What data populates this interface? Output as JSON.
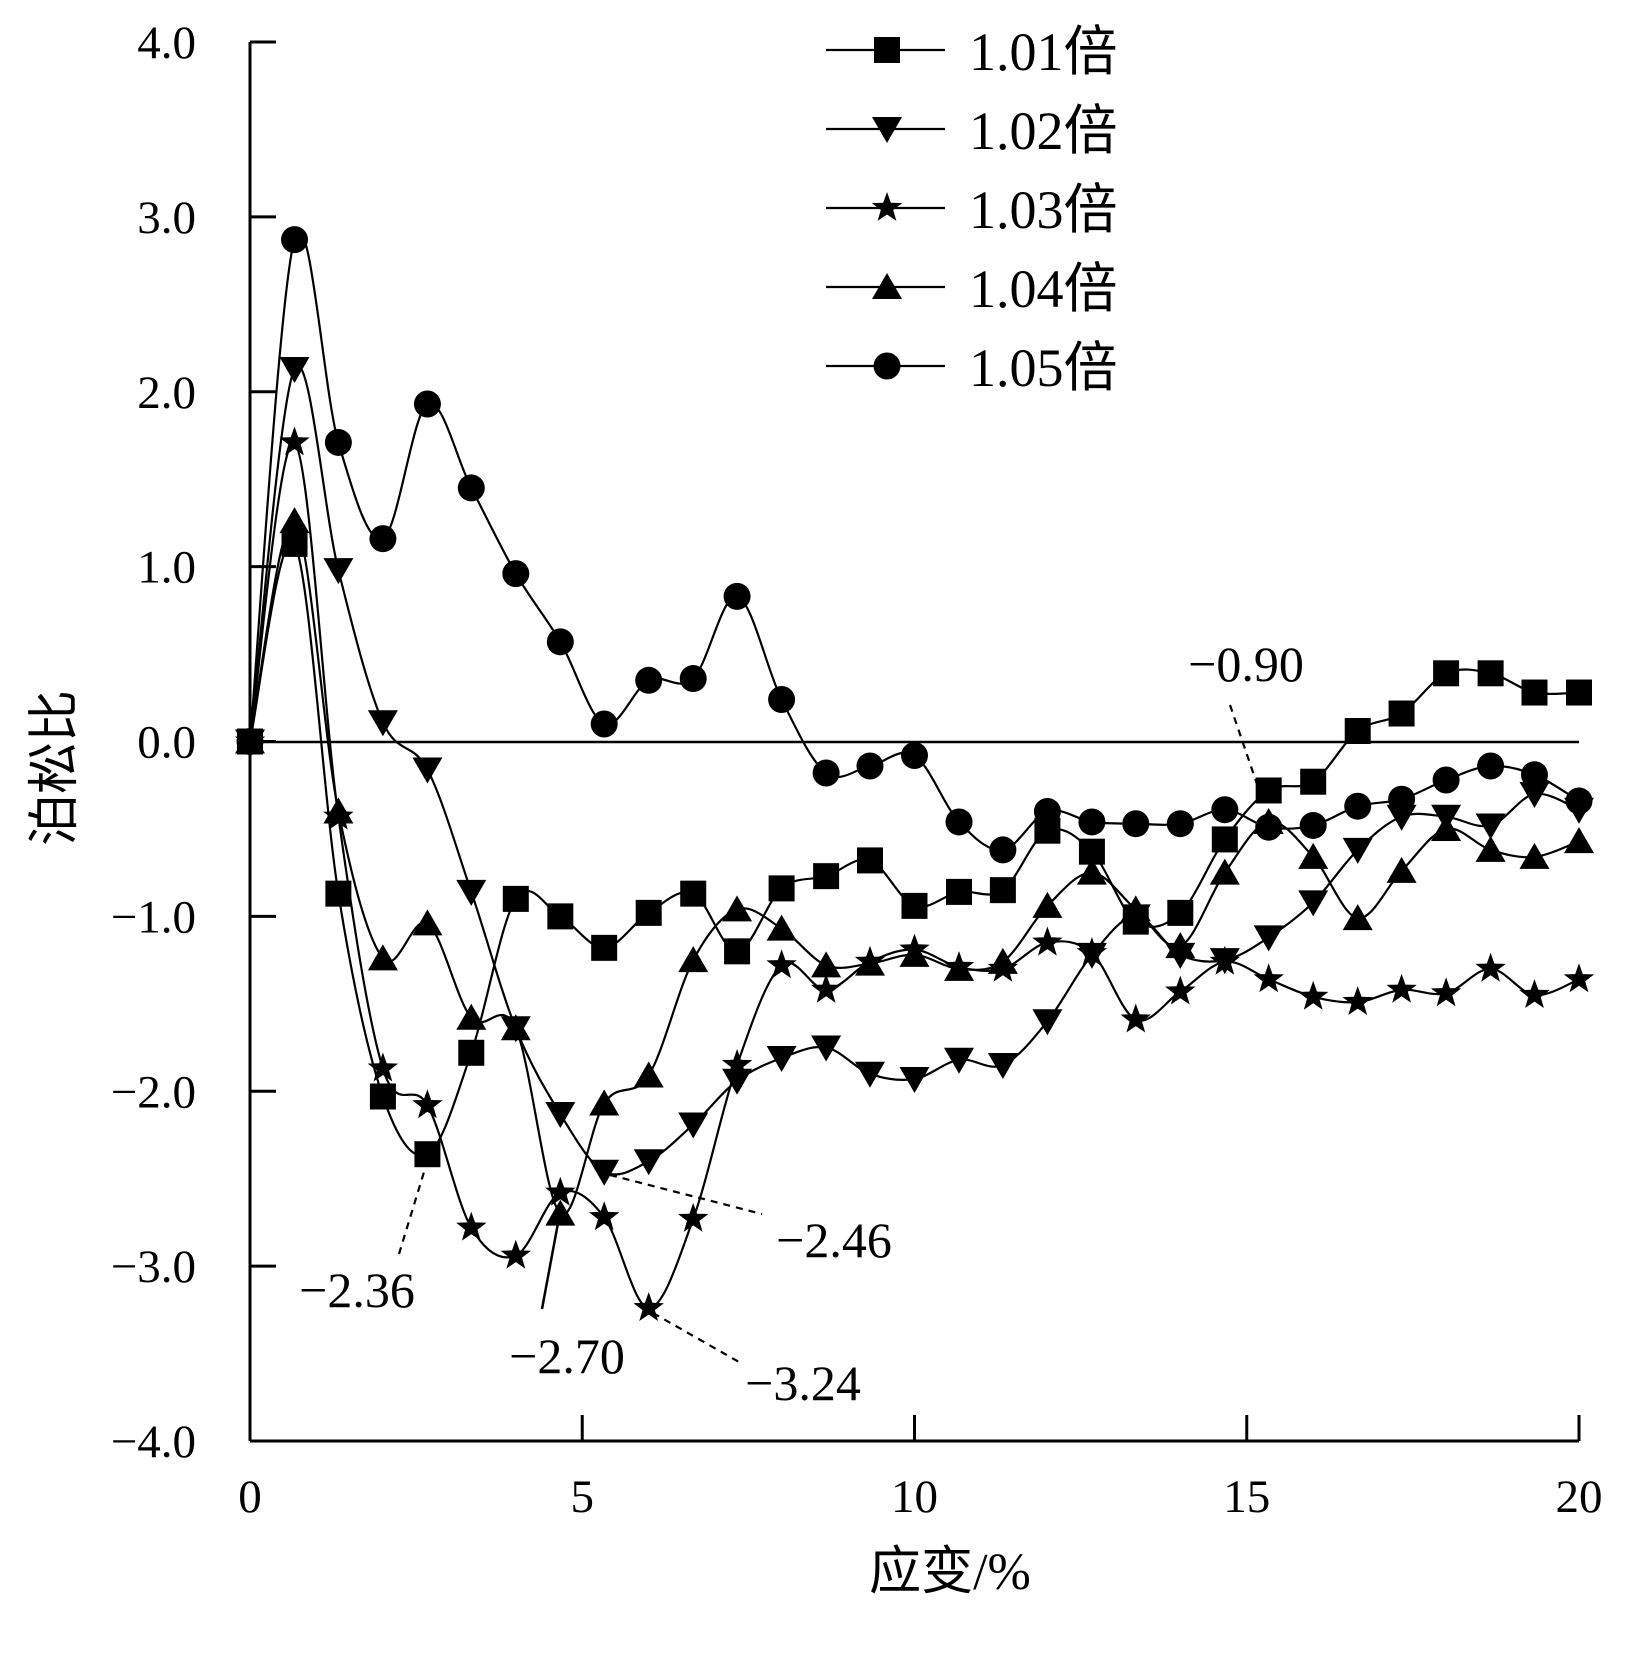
{
  "chart_data": {
    "type": "line",
    "title": "",
    "xlabel": "应变/%",
    "ylabel": "泊松比",
    "xlim": [
      0,
      20
    ],
    "ylim": [
      -4,
      4
    ],
    "xticks": [
      0,
      5,
      10,
      15,
      20
    ],
    "xtick_labels": [
      "0",
      "5",
      "10",
      "15",
      "20"
    ],
    "yticks": [
      4,
      3,
      2,
      1,
      0,
      -1,
      -2,
      -3,
      -4
    ],
    "ytick_labels": [
      "4.0",
      "3.0",
      "2.0",
      "1.0",
      "0.0",
      "−1.0",
      "−2.0",
      "−3.0",
      "−4.0"
    ],
    "grid": false,
    "reference_line_y": 0,
    "legend_position": "top-center",
    "x": [
      0,
      0.67,
      1.33,
      2.0,
      2.67,
      3.33,
      4.0,
      4.67,
      5.33,
      6.0,
      6.67,
      7.33,
      8.0,
      8.67,
      9.33,
      10.0,
      10.67,
      11.33,
      12.0,
      12.67,
      13.33,
      14.0,
      14.67,
      15.33,
      16.0,
      16.67,
      17.33,
      18.0,
      18.67,
      19.33,
      20.0
    ],
    "series": [
      {
        "name": "1.01倍",
        "marker": "square",
        "values": [
          0,
          1.13,
          -0.87,
          -2.03,
          -2.36,
          -1.78,
          -0.9,
          -1.0,
          -1.18,
          -0.98,
          -0.87,
          -1.2,
          -0.84,
          -0.77,
          -0.68,
          -0.94,
          -0.86,
          -0.85,
          -0.51,
          -0.63,
          -1.03,
          -0.98,
          -0.56,
          -0.28,
          -0.23,
          0.06,
          0.16,
          0.39,
          0.39,
          0.28,
          0.28
        ]
      },
      {
        "name": "1.02倍",
        "marker": "triangle-down",
        "values": [
          0,
          2.13,
          0.98,
          0.11,
          -0.16,
          -0.86,
          -1.64,
          -2.13,
          -2.46,
          -2.4,
          -2.19,
          -1.94,
          -1.81,
          -1.75,
          -1.9,
          -1.93,
          -1.82,
          -1.85,
          -1.6,
          -1.22,
          -1.0,
          -1.22,
          -1.25,
          -1.12,
          -0.92,
          -0.62,
          -0.43,
          -0.43,
          -0.48,
          -0.3,
          -0.39
        ]
      },
      {
        "name": "1.03倍",
        "marker": "star",
        "values": [
          0,
          1.71,
          -0.43,
          -1.87,
          -2.08,
          -2.78,
          -2.94,
          -2.58,
          -2.72,
          -3.24,
          -2.73,
          -1.85,
          -1.28,
          -1.42,
          -1.26,
          -1.19,
          -1.29,
          -1.3,
          -1.15,
          -1.21,
          -1.59,
          -1.43,
          -1.26,
          -1.36,
          -1.46,
          -1.49,
          -1.42,
          -1.44,
          -1.3,
          -1.45,
          -1.36
        ]
      },
      {
        "name": "1.04倍",
        "marker": "triangle-up",
        "values": [
          0,
          1.26,
          -0.4,
          -1.24,
          -1.04,
          -1.58,
          -1.64,
          -2.7,
          -2.07,
          -1.91,
          -1.25,
          -0.96,
          -1.07,
          -1.28,
          -1.27,
          -1.22,
          -1.3,
          -1.26,
          -0.94,
          -0.75,
          -0.96,
          -1.17,
          -0.75,
          -0.46,
          -0.66,
          -1.01,
          -0.74,
          -0.5,
          -0.62,
          -0.66,
          -0.57
        ]
      },
      {
        "name": "1.05倍",
        "marker": "circle",
        "values": [
          0,
          2.87,
          1.71,
          1.16,
          1.93,
          1.45,
          0.96,
          0.57,
          0.1,
          0.35,
          0.36,
          0.83,
          0.24,
          -0.18,
          -0.14,
          -0.08,
          -0.46,
          -0.62,
          -0.4,
          -0.46,
          -0.47,
          -0.47,
          -0.39,
          -0.49,
          -0.48,
          -0.37,
          -0.33,
          -0.22,
          -0.14,
          -0.19,
          -0.34
        ]
      }
    ],
    "annotations": [
      {
        "text": "−0.90"
      },
      {
        "text": "−2.36"
      },
      {
        "text": "−2.70"
      },
      {
        "text": "−3.24"
      },
      {
        "text": "−2.46"
      }
    ]
  }
}
